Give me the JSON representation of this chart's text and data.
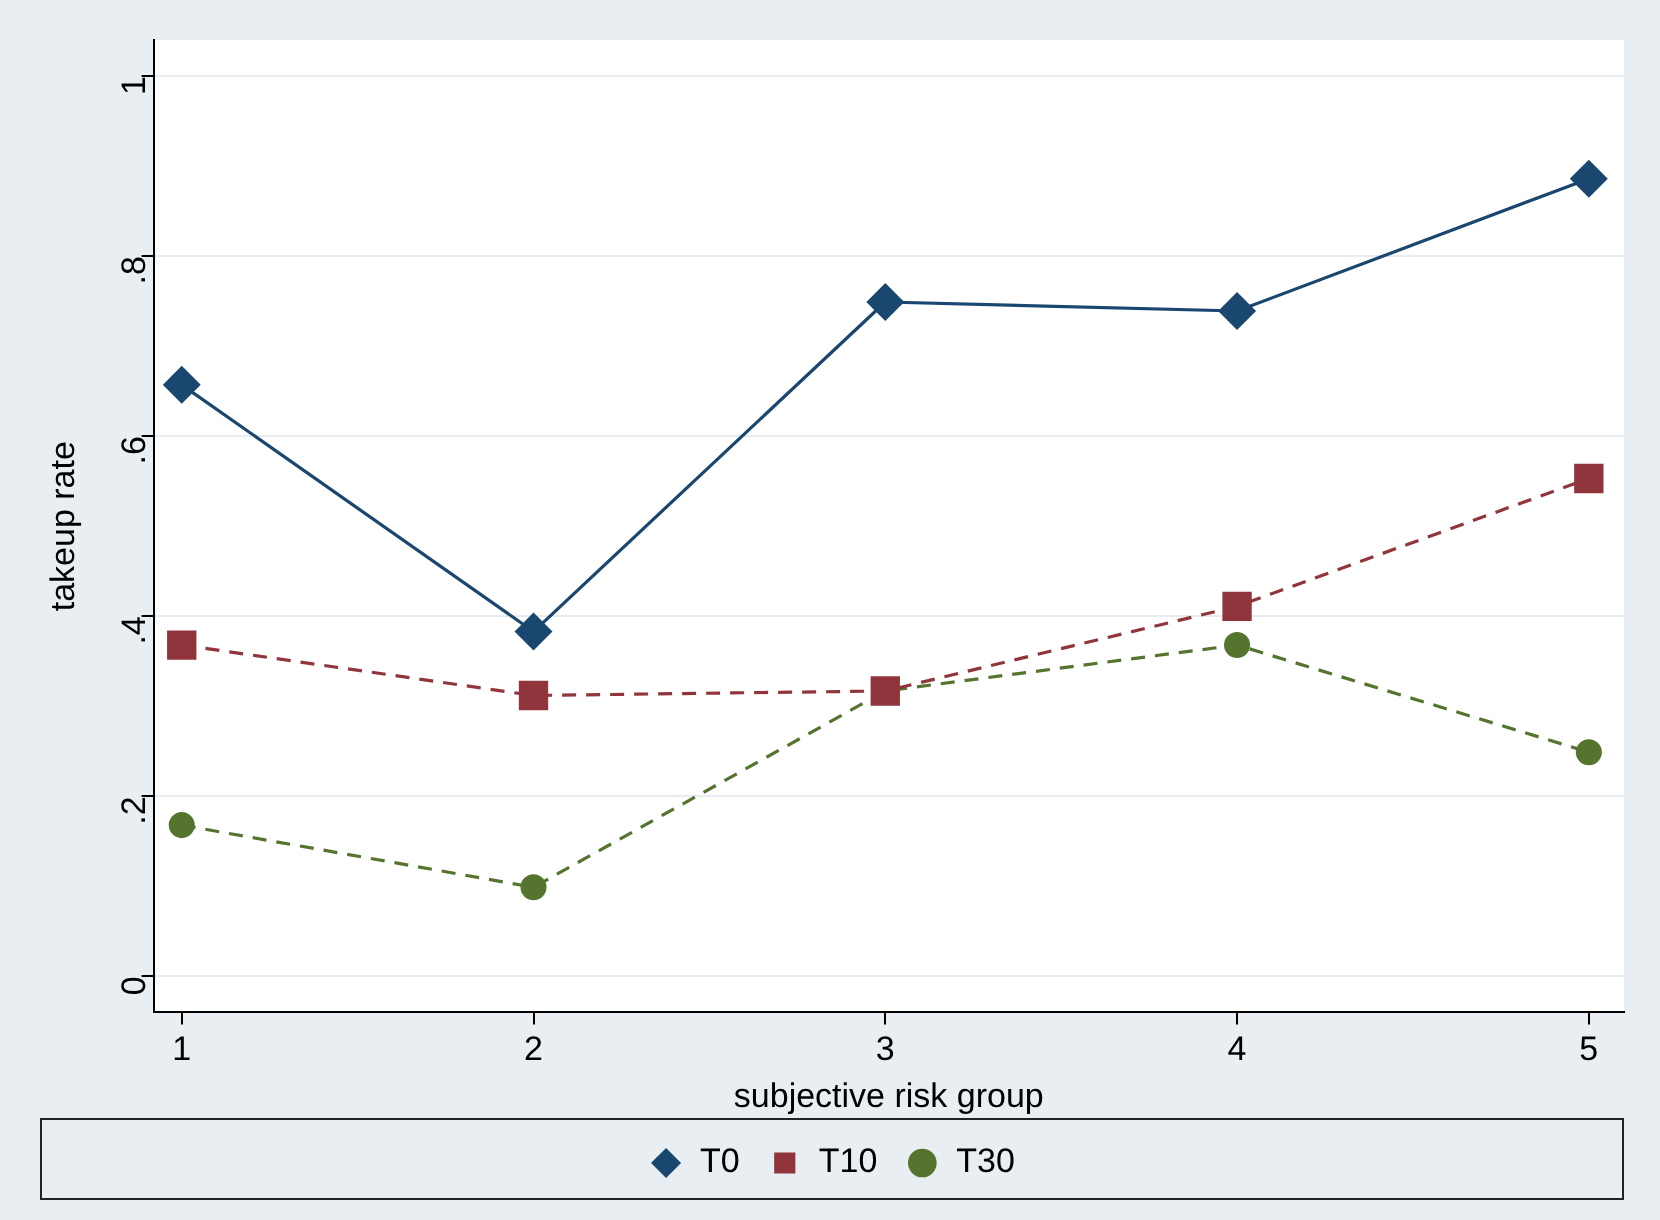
{
  "chart_data": {
    "type": "line",
    "xlabel": "subjective risk group",
    "ylabel": "takeup rate",
    "x": [
      1,
      2,
      3,
      4,
      5
    ],
    "xlim": [
      0.92,
      5.1
    ],
    "xticks": [
      1,
      2,
      3,
      4,
      5
    ],
    "ylim": [
      -0.04,
      1.04
    ],
    "yticks": [
      {
        "value": 0,
        "label": "0"
      },
      {
        "value": 0.2,
        "label": ".2"
      },
      {
        "value": 0.4,
        "label": ".4"
      },
      {
        "value": 0.6,
        "label": ".6"
      },
      {
        "value": 0.8,
        "label": ".8"
      },
      {
        "value": 1,
        "label": "1"
      }
    ],
    "grid": "y",
    "legend": "bottom",
    "series": [
      {
        "name": "T0",
        "color": "#1a476f",
        "values": [
          0.657,
          0.383,
          0.749,
          0.739,
          0.886
        ],
        "marker": "diamond",
        "line_style": "solid"
      },
      {
        "name": "T10",
        "color": "#90353b",
        "values": [
          0.368,
          0.312,
          0.317,
          0.411,
          0.553
        ],
        "marker": "square",
        "line_style": "dashed"
      },
      {
        "name": "T30",
        "color": "#55752f",
        "values": [
          0.168,
          0.099,
          0.317,
          0.368,
          0.249
        ],
        "marker": "circle",
        "line_style": "dashed"
      }
    ]
  }
}
